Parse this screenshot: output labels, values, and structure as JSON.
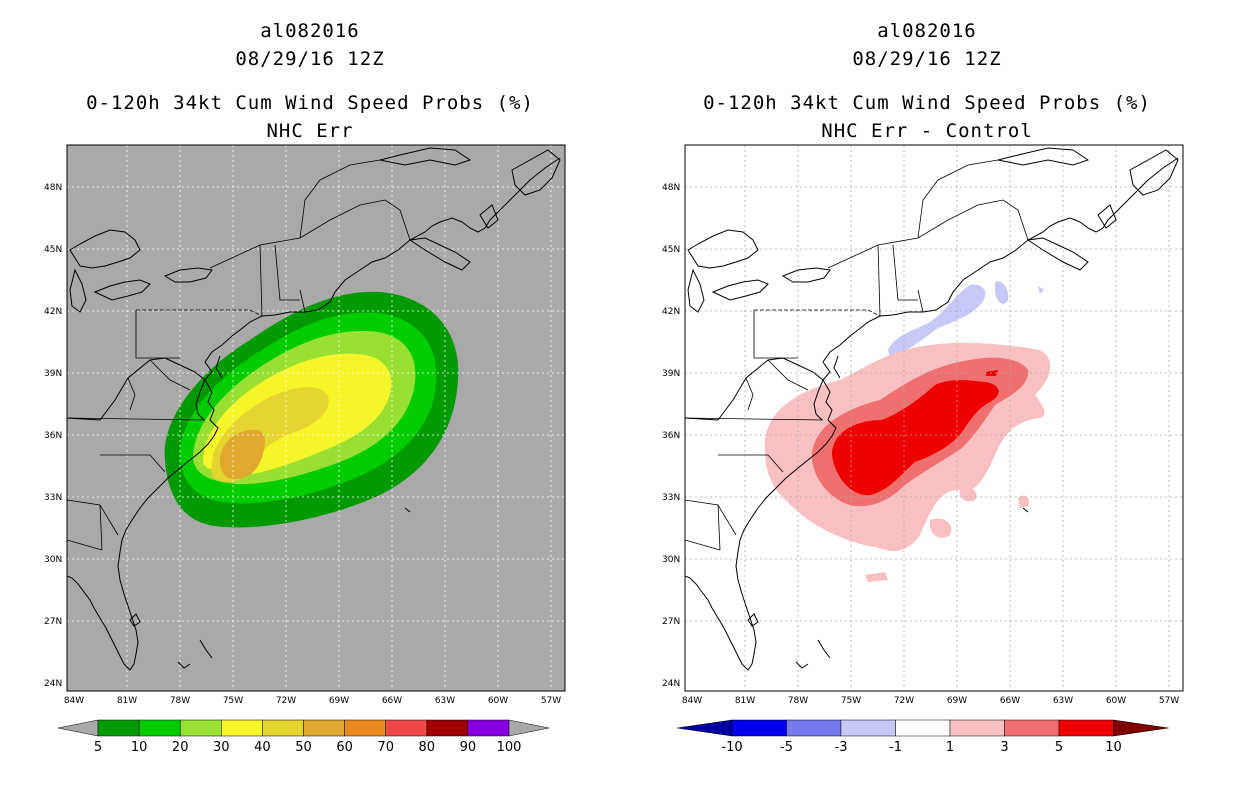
{
  "left": {
    "storm_id": "al082016",
    "datetime": "08/29/16 12Z",
    "product": "0-120h 34kt Cum Wind Speed Probs (%)",
    "subtitle": "NHC Err",
    "colorbar": {
      "labels": [
        "5",
        "10",
        "20",
        "30",
        "40",
        "50",
        "60",
        "70",
        "80",
        "90",
        "100"
      ],
      "colors": [
        "#009900",
        "#00cc00",
        "#99e033",
        "#f5f52a",
        "#e6d531",
        "#e0a82c",
        "#e98a1f",
        "#f04848",
        "#a00000",
        "#8a00e0"
      ]
    }
  },
  "right": {
    "storm_id": "al082016",
    "datetime": "08/29/16 12Z",
    "product": "0-120h 34kt Cum Wind Speed Probs (%)",
    "subtitle": "NHC Err - Control",
    "colorbar": {
      "labels": [
        "-10",
        "-5",
        "-3",
        "-1",
        "1",
        "3",
        "5",
        "10"
      ],
      "colors": [
        "#0000a0",
        "#0000ee",
        "#7878ee",
        "#c8c8f8",
        "#ffffff",
        "#f8c0c0",
        "#f07070",
        "#ee0000",
        "#800000"
      ]
    }
  },
  "axes": {
    "lat_labels": [
      "48N",
      "45N",
      "42N",
      "39N",
      "36N",
      "33N",
      "30N",
      "27N",
      "24N"
    ],
    "lon_labels": [
      "84W",
      "81W",
      "78W",
      "75W",
      "72W",
      "69W",
      "66W",
      "63W",
      "60W",
      "57W"
    ]
  }
}
